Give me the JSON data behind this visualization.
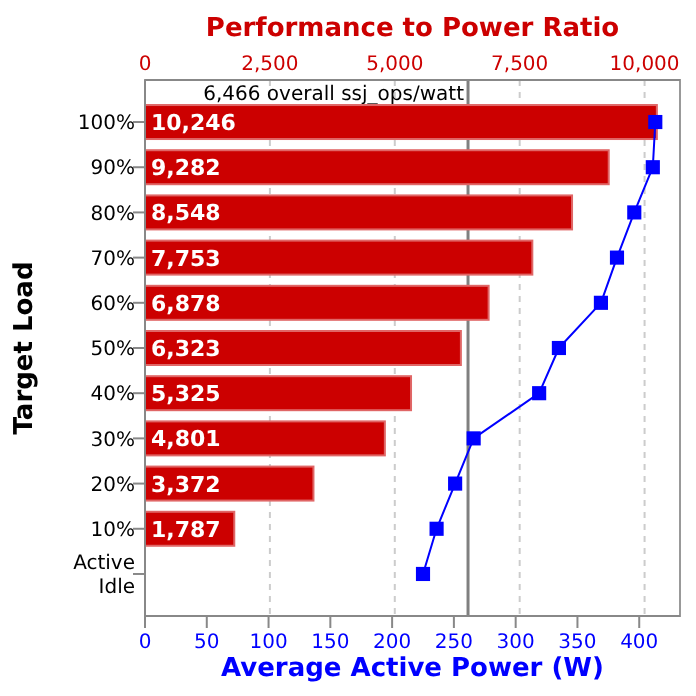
{
  "chart_data": {
    "type": "bar",
    "orientation": "horizontal",
    "title": "Performance to Power Ratio",
    "xlabel": "Average Active Power (W)",
    "ylabel": "Target Load",
    "categories": [
      "100%",
      "90%",
      "80%",
      "70%",
      "60%",
      "50%",
      "40%",
      "30%",
      "20%",
      "10%",
      "Active Idle"
    ],
    "series": [
      {
        "axis": "x2",
        "color": "#cc0000",
        "values": [
          10246,
          9282,
          8548,
          7753,
          6878,
          6323,
          5325,
          4801,
          3372,
          1787,
          null
        ],
        "value_labels": [
          "10,246",
          "9,282",
          "8,548",
          "7,753",
          "6,878",
          "6,323",
          "5,325",
          "4,801",
          "3,372",
          "1,787",
          null
        ]
      },
      {
        "type": "line",
        "color": "#0000ff",
        "marker": "square",
        "values": [
          413,
          411,
          396,
          382,
          369,
          335,
          319,
          266,
          251,
          236,
          225
        ]
      }
    ],
    "xlim": [
      0,
      433
    ],
    "xticks": [
      0,
      50,
      100,
      150,
      200,
      250,
      300,
      350,
      400
    ],
    "x2lim": [
      0,
      10709
    ],
    "x2ticks": [
      {
        "value": 0,
        "label": "0"
      },
      {
        "value": 2500,
        "label": "2,500"
      },
      {
        "value": 5000,
        "label": "5,000"
      },
      {
        "value": 7500,
        "label": "7,500"
      },
      {
        "value": 10000,
        "label": "10,000"
      }
    ],
    "ref_lines": [
      {
        "axis": "x2",
        "value": 6466,
        "label": "6,466 overall ssj_ops/watt",
        "color": "#808080"
      }
    ],
    "grid": "x"
  }
}
